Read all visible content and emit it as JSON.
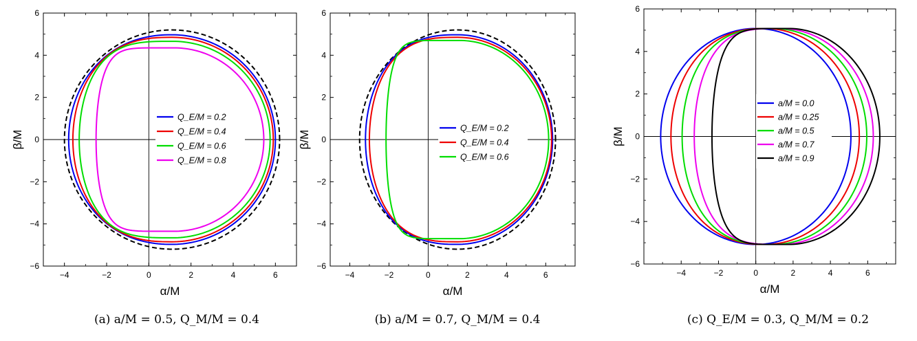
{
  "chart_data": [
    {
      "type": "line",
      "panel_caption": "(a) a/M = 0.5, Q_M/M = 0.4",
      "xlabel": "α/M",
      "ylabel": "β/M",
      "xlim": [
        -5,
        7
      ],
      "ylim": [
        -6,
        6
      ],
      "xticks": [
        -4,
        -2,
        0,
        2,
        4,
        6
      ],
      "yticks": [
        -6,
        -4,
        -2,
        0,
        2,
        4,
        6
      ],
      "grid": false,
      "legend_position": "center-right",
      "series": [
        {
          "name": "",
          "color": "#000000",
          "dashed": true,
          "shape": {
            "xl": -4.0,
            "xr": 6.2,
            "ytop": 5.2,
            "cx": 1.1,
            "flat": 0.0
          }
        },
        {
          "name": "Q_E/M = 0.2",
          "color": "#0000ee",
          "dashed": false,
          "shape": {
            "xl": -3.8,
            "xr": 6.0,
            "ytop": 4.97,
            "cx": 1.1,
            "flat": 0.02
          }
        },
        {
          "name": "Q_E/M = 0.4",
          "color": "#ee0000",
          "dashed": false,
          "shape": {
            "xl": -3.6,
            "xr": 5.9,
            "ytop": 4.85,
            "cx": 1.1,
            "flat": 0.05
          }
        },
        {
          "name": "Q_E/M = 0.6",
          "color": "#00dd00",
          "dashed": false,
          "shape": {
            "xl": -3.3,
            "xr": 5.75,
            "ytop": 4.66,
            "cx": 1.15,
            "flat": 0.12
          }
        },
        {
          "name": "Q_E/M = 0.8",
          "color": "#ee00ee",
          "dashed": false,
          "shape": {
            "xl": -2.5,
            "xr": 5.45,
            "ytop": 4.35,
            "cx": 1.2,
            "flat": 0.38
          }
        }
      ]
    },
    {
      "type": "line",
      "panel_caption": "(b) a/M = 0.7, Q_M/M = 0.4",
      "xlabel": "α/M",
      "ylabel": "β/M",
      "xlim": [
        -5,
        7.5
      ],
      "ylim": [
        -6,
        6
      ],
      "xticks": [
        -4,
        -2,
        0,
        2,
        4,
        6
      ],
      "yticks": [
        -6,
        -4,
        -2,
        0,
        2,
        4,
        6
      ],
      "grid": false,
      "legend_position": "center-right",
      "series": [
        {
          "name": "",
          "color": "#000000",
          "dashed": true,
          "shape": {
            "xl": -3.5,
            "xr": 6.5,
            "ytop": 5.2,
            "cx": 1.5,
            "flat": 0.0
          }
        },
        {
          "name": "Q_E/M = 0.2",
          "color": "#0000ee",
          "dashed": false,
          "shape": {
            "xl": -3.2,
            "xr": 6.35,
            "ytop": 4.97,
            "cx": 1.5,
            "flat": 0.05
          }
        },
        {
          "name": "Q_E/M = 0.4",
          "color": "#ee0000",
          "dashed": false,
          "shape": {
            "xl": -3.0,
            "xr": 6.3,
            "ytop": 4.85,
            "cx": 1.5,
            "flat": 0.08
          }
        },
        {
          "name": "Q_E/M = 0.6",
          "color": "#00dd00",
          "dashed": false,
          "shape": {
            "xl": -2.15,
            "xr": 6.15,
            "ytop": 4.7,
            "cx": 1.6,
            "flat": 0.5
          }
        }
      ]
    },
    {
      "type": "line",
      "panel_caption": "(c) Q_E/M = 0.3, Q_M/M = 0.2",
      "xlabel": "α/M",
      "ylabel": "β/M",
      "xlim": [
        -6,
        7.5
      ],
      "ylim": [
        -6,
        6
      ],
      "xticks": [
        -4,
        -2,
        0,
        2,
        4,
        6
      ],
      "yticks": [
        -6,
        -4,
        -2,
        0,
        2,
        4,
        6
      ],
      "grid": false,
      "legend_position": "center",
      "series": [
        {
          "name": "a/M = 0.0",
          "color": "#0000ee",
          "dashed": false,
          "shape": {
            "xl": -5.1,
            "xr": 5.1,
            "ytop": 5.08,
            "cx": 0.0,
            "flat": 0.0
          }
        },
        {
          "name": "a/M = 0.25",
          "color": "#ee0000",
          "dashed": false,
          "shape": {
            "xl": -4.55,
            "xr": 5.55,
            "ytop": 5.08,
            "cx": 0.5,
            "flat": 0.03
          }
        },
        {
          "name": "a/M = 0.5",
          "color": "#00dd00",
          "dashed": false,
          "shape": {
            "xl": -3.95,
            "xr": 5.95,
            "ytop": 5.08,
            "cx": 0.95,
            "flat": 0.07
          }
        },
        {
          "name": "a/M = 0.7",
          "color": "#ee00ee",
          "dashed": false,
          "shape": {
            "xl": -3.3,
            "xr": 6.3,
            "ytop": 5.08,
            "cx": 1.35,
            "flat": 0.12
          }
        },
        {
          "name": "a/M = 0.9",
          "color": "#000000",
          "dashed": false,
          "shape": {
            "xl": -2.35,
            "xr": 6.65,
            "ytop": 5.08,
            "cx": 1.75,
            "flat": 0.3
          }
        }
      ]
    }
  ]
}
